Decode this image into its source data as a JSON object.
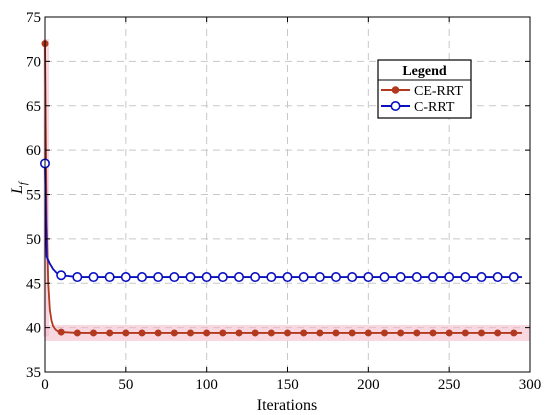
{
  "chart_data": {
    "type": "line",
    "xlabel": "Iterations",
    "ylabel": "L",
    "ylabel_subscript": "f",
    "xlim": [
      0,
      300
    ],
    "ylim": [
      35,
      75
    ],
    "x_ticks": [
      0,
      50,
      100,
      150,
      200,
      250,
      300
    ],
    "y_ticks": [
      35,
      40,
      45,
      50,
      55,
      60,
      65,
      70,
      75
    ],
    "grid": true,
    "legend": {
      "title": "Legend",
      "placement": "top-right"
    },
    "series": [
      {
        "name": "CE-RRT",
        "color": "#b2391f",
        "band_color": "#f4b6c8",
        "marker": "filled-circle",
        "x": [
          0,
          1,
          2,
          3,
          4,
          5,
          6,
          7,
          8,
          9,
          10,
          20,
          30,
          40,
          50,
          60,
          70,
          80,
          90,
          100,
          110,
          120,
          130,
          140,
          150,
          160,
          170,
          180,
          190,
          200,
          210,
          220,
          230,
          240,
          250,
          260,
          270,
          280,
          290,
          295
        ],
        "y": [
          72,
          52,
          45,
          42,
          40.8,
          40.2,
          39.9,
          39.7,
          39.6,
          39.5,
          39.5,
          39.4,
          39.4,
          39.4,
          39.4,
          39.4,
          39.4,
          39.4,
          39.4,
          39.4,
          39.4,
          39.4,
          39.4,
          39.4,
          39.4,
          39.4,
          39.4,
          39.4,
          39.4,
          39.4,
          39.4,
          39.4,
          39.4,
          39.4,
          39.4,
          39.4,
          39.4,
          39.4,
          39.4,
          39.4
        ],
        "marker_x": [
          0,
          10,
          20,
          30,
          40,
          50,
          60,
          70,
          80,
          90,
          100,
          110,
          120,
          130,
          140,
          150,
          160,
          170,
          180,
          190,
          200,
          210,
          220,
          230,
          240,
          250,
          260,
          270,
          280,
          290
        ]
      },
      {
        "name": "C-RRT",
        "color": "#0a10c0",
        "marker": "open-circle",
        "x": [
          0,
          1,
          2,
          3,
          4,
          5,
          6,
          7,
          8,
          9,
          10,
          20,
          30,
          40,
          50,
          60,
          70,
          80,
          90,
          100,
          110,
          120,
          130,
          140,
          150,
          160,
          170,
          180,
          190,
          200,
          210,
          220,
          230,
          240,
          250,
          260,
          270,
          280,
          290,
          295
        ],
        "y": [
          58.5,
          48,
          47.6,
          47.2,
          46.9,
          46.6,
          46.4,
          46.2,
          46.05,
          45.95,
          45.9,
          45.7,
          45.7,
          45.7,
          45.7,
          45.7,
          45.7,
          45.7,
          45.7,
          45.7,
          45.7,
          45.7,
          45.7,
          45.7,
          45.7,
          45.7,
          45.7,
          45.7,
          45.7,
          45.7,
          45.7,
          45.7,
          45.7,
          45.7,
          45.7,
          45.7,
          45.7,
          45.7,
          45.7,
          45.7
        ],
        "marker_x": [
          0,
          10,
          20,
          30,
          40,
          50,
          60,
          70,
          80,
          90,
          100,
          110,
          120,
          130,
          140,
          150,
          160,
          170,
          180,
          190,
          200,
          210,
          220,
          230,
          240,
          250,
          260,
          270,
          280,
          290
        ]
      }
    ]
  }
}
